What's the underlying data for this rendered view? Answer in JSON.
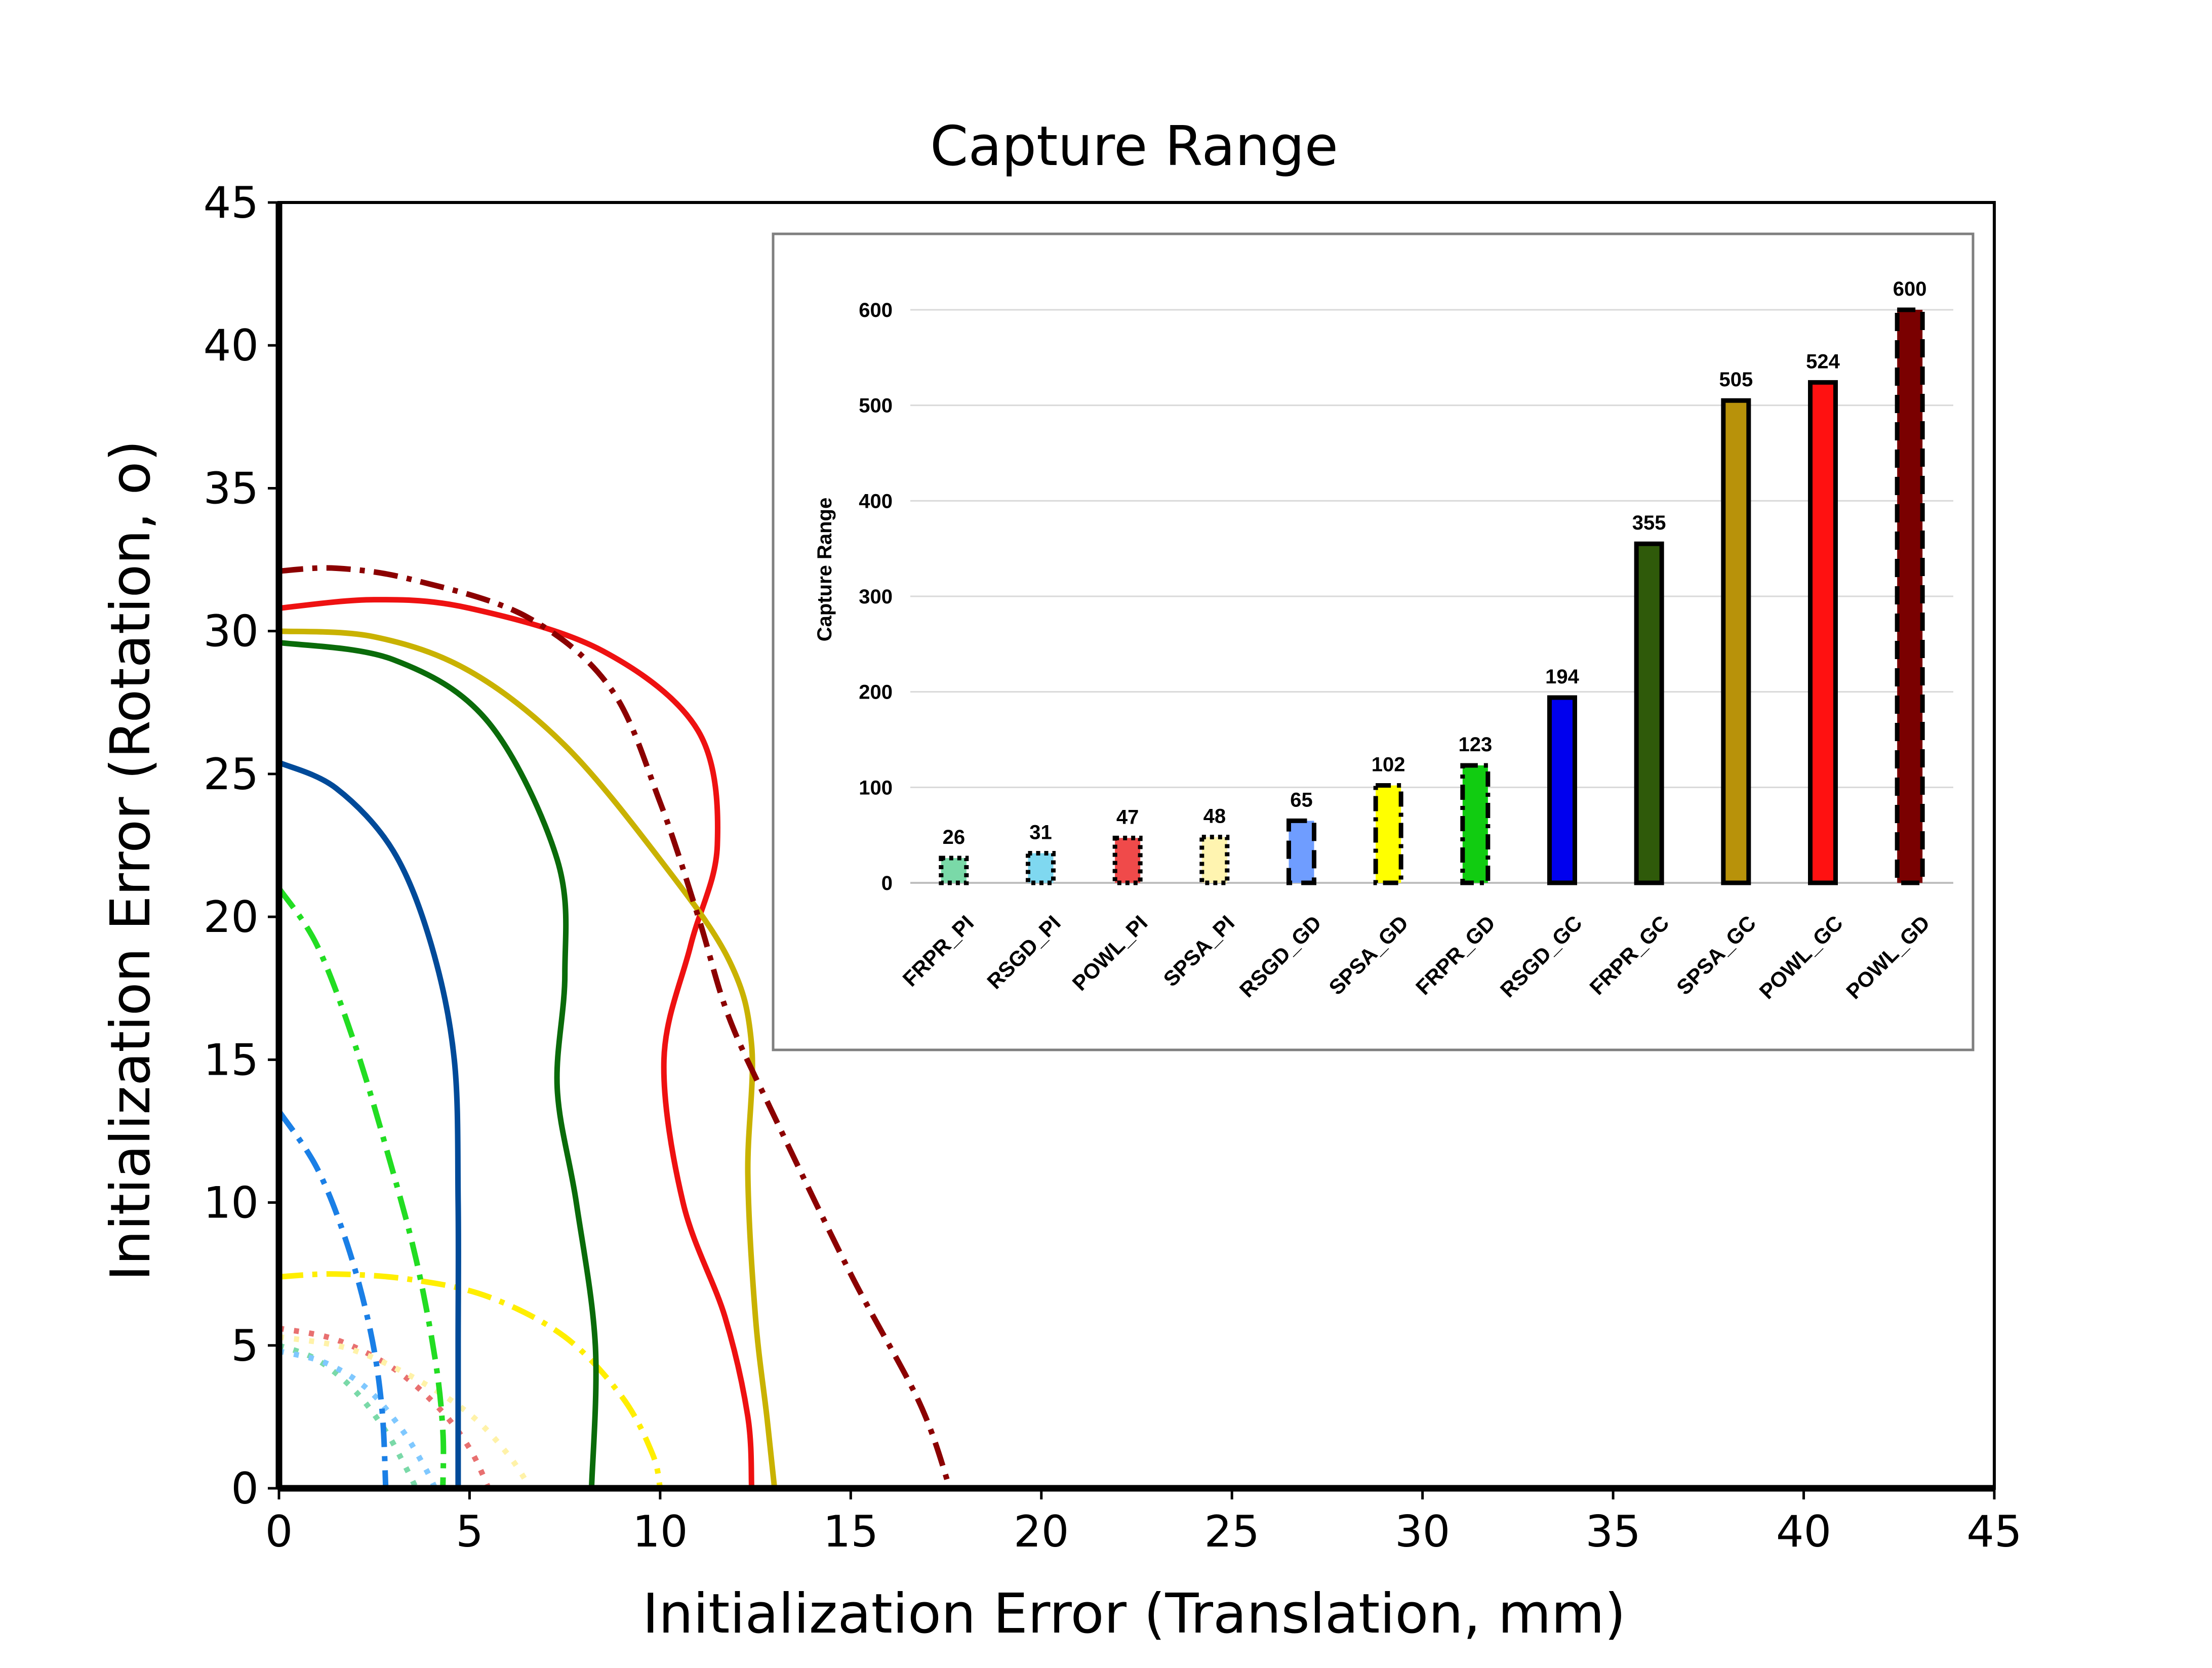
{
  "chart_data": [
    {
      "type": "line",
      "title": "Capture Range",
      "xlabel": "Initialization Error (Translation, mm)",
      "ylabel": "Initialization Error (Rotation, o)",
      "xlim": [
        0,
        45
      ],
      "ylim": [
        0,
        45
      ],
      "xticks": [
        0,
        5,
        10,
        15,
        20,
        25,
        30,
        35,
        40,
        45
      ],
      "yticks": [
        0,
        5,
        10,
        15,
        20,
        25,
        30,
        35,
        40,
        45
      ],
      "grid": false,
      "series": [
        {
          "color": "#7ad9a8",
          "style": "dotted",
          "points": [
            [
              0,
              5.0
            ],
            [
              1.0,
              4.5
            ],
            [
              2.0,
              3.4
            ],
            [
              2.8,
              2.0
            ],
            [
              3.3,
              0.8
            ],
            [
              3.6,
              0
            ]
          ]
        },
        {
          "color": "#7fc8ff",
          "style": "dotted",
          "points": [
            [
              0,
              4.8
            ],
            [
              1.2,
              4.4
            ],
            [
              2.3,
              3.5
            ],
            [
              3.2,
              2.1
            ],
            [
              3.8,
              0.8
            ],
            [
              4.1,
              0
            ]
          ]
        },
        {
          "color": "#e87070",
          "style": "dotted",
          "points": [
            [
              0,
              5.6
            ],
            [
              1.5,
              5.2
            ],
            [
              3.0,
              4.2
            ],
            [
              4.2,
              2.8
            ],
            [
              5.0,
              1.4
            ],
            [
              5.5,
              0
            ]
          ]
        },
        {
          "color": "#fff2a8",
          "style": "dotted",
          "points": [
            [
              0,
              5.3
            ],
            [
              1.8,
              4.9
            ],
            [
              3.5,
              3.9
            ],
            [
              5.0,
              2.6
            ],
            [
              6.0,
              1.2
            ],
            [
              6.6,
              0
            ]
          ]
        },
        {
          "color": "#1a7fe6",
          "style": "dashdot",
          "points": [
            [
              0,
              13.2
            ],
            [
              1.0,
              11.2
            ],
            [
              1.8,
              8.5
            ],
            [
              2.4,
              5.5
            ],
            [
              2.7,
              2.8
            ],
            [
              2.8,
              0
            ]
          ]
        },
        {
          "color": "#ffee00",
          "style": "dashdot",
          "points": [
            [
              0,
              7.4
            ],
            [
              1.5,
              7.5
            ],
            [
              3.5,
              7.3
            ],
            [
              5.5,
              6.7
            ],
            [
              7.5,
              5.3
            ],
            [
              9.0,
              3.2
            ],
            [
              9.8,
              1.2
            ],
            [
              10.0,
              0
            ]
          ]
        },
        {
          "color": "#22dd22",
          "style": "dashdot",
          "points": [
            [
              0,
              21.0
            ],
            [
              1.0,
              19.0
            ],
            [
              2.0,
              15.5
            ],
            [
              2.9,
              11.5
            ],
            [
              3.6,
              8.0
            ],
            [
              4.1,
              4.5
            ],
            [
              4.3,
              2.0
            ],
            [
              4.3,
              0
            ]
          ]
        },
        {
          "color": "#004a99",
          "style": "solid",
          "points": [
            [
              0,
              25.4
            ],
            [
              1.5,
              24.5
            ],
            [
              3.0,
              22.3
            ],
            [
              4.0,
              19.0
            ],
            [
              4.6,
              15.0
            ],
            [
              4.7,
              10.0
            ],
            [
              4.7,
              5.0
            ],
            [
              4.7,
              0
            ]
          ]
        },
        {
          "color": "#0a6b0a",
          "style": "solid",
          "points": [
            [
              0,
              29.6
            ],
            [
              3.0,
              29.0
            ],
            [
              5.5,
              26.8
            ],
            [
              7.3,
              22.0
            ],
            [
              7.5,
              18.0
            ],
            [
              7.3,
              14.0
            ],
            [
              7.8,
              10.0
            ],
            [
              8.3,
              5.0
            ],
            [
              8.2,
              0
            ]
          ]
        },
        {
          "color": "#ee1111",
          "style": "solid",
          "points": [
            [
              0,
              30.8
            ],
            [
              2.5,
              31.1
            ],
            [
              5.0,
              30.8
            ],
            [
              8.5,
              29.3
            ],
            [
              11.0,
              26.5
            ],
            [
              11.5,
              22.5
            ],
            [
              10.8,
              19.0
            ],
            [
              10.1,
              15.0
            ],
            [
              10.6,
              10.0
            ],
            [
              11.7,
              6.0
            ],
            [
              12.3,
              2.5
            ],
            [
              12.4,
              0
            ]
          ]
        },
        {
          "color": "#c9b200",
          "style": "solid",
          "points": [
            [
              0,
              30.0
            ],
            [
              2.5,
              29.8
            ],
            [
              5.0,
              28.6
            ],
            [
              7.5,
              26.0
            ],
            [
              10.0,
              22.0
            ],
            [
              11.8,
              18.5
            ],
            [
              12.4,
              15.5
            ],
            [
              12.3,
              11.0
            ],
            [
              12.5,
              6.0
            ],
            [
              12.8,
              2.5
            ],
            [
              13.0,
              0
            ]
          ]
        },
        {
          "color": "#8b0000",
          "style": "dashdot",
          "points": [
            [
              0,
              32.1
            ],
            [
              1.5,
              32.2
            ],
            [
              3.5,
              31.8
            ],
            [
              6.5,
              30.5
            ],
            [
              8.7,
              28.0
            ],
            [
              10.0,
              24.0
            ],
            [
              11.0,
              20.0
            ],
            [
              11.8,
              16.5
            ],
            [
              13.0,
              13.0
            ],
            [
              15.0,
              7.5
            ],
            [
              16.8,
              3.0
            ],
            [
              17.6,
              0
            ]
          ]
        }
      ]
    },
    {
      "type": "bar",
      "ylabel": "Capture Range",
      "ylim": [
        0,
        600
      ],
      "yticks": [
        0,
        100,
        200,
        300,
        400,
        500,
        600
      ],
      "grid": true,
      "categories": [
        "FRPR_PI",
        "RSGD_PI",
        "POWL_PI",
        "SPSA_PI",
        "RSGD_GD",
        "SPSA_GD",
        "FRPR_GD",
        "RSGD_GC",
        "FRPR_GC",
        "SPSA_GC",
        "POWL_GC",
        "POWL_GD"
      ],
      "values": [
        26,
        31,
        47,
        48,
        65,
        102,
        123,
        194,
        355,
        505,
        524,
        600
      ],
      "labels": [
        "26",
        "31",
        "47",
        "48",
        "65",
        "102",
        "123",
        "194",
        "355",
        "505",
        "524",
        "600"
      ],
      "colors": [
        "#7ad9a8",
        "#7fd8f0",
        "#f04a4a",
        "#fff4b0",
        "#6f9dff",
        "#ffff00",
        "#11cc11",
        "#0000ee",
        "#2f5a0a",
        "#b8920a",
        "#ff1111",
        "#7a0000"
      ],
      "borders": [
        "dotted",
        "dotted",
        "dotted",
        "dotted",
        "dashed",
        "dashdot",
        "dashdot",
        "solid",
        "solid",
        "solid",
        "solid",
        "dashed"
      ]
    }
  ]
}
